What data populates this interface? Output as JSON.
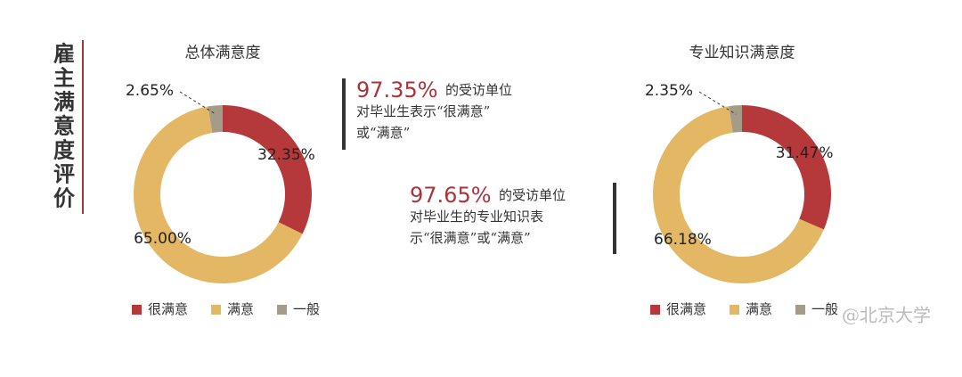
{
  "side_title": "雇主满意度评价",
  "callouts": [
    {
      "highlight": "97.35%",
      "lines": [
        "的受访单位",
        "对毕业生表示“很满意”",
        "或“满意”"
      ]
    },
    {
      "highlight": "97.65%",
      "lines": [
        "的受访单位",
        "对毕业生的专业知识表",
        "示“很满意”或“满意”"
      ]
    }
  ],
  "watermark": "@北京大学",
  "chart_data": [
    {
      "type": "donut",
      "title": "总体满意度",
      "categories": [
        "很满意",
        "满意",
        "一般"
      ],
      "values": [
        32.35,
        65.0,
        2.65
      ],
      "value_labels": [
        "32.35%",
        "65.00%",
        "2.65%"
      ],
      "colors": [
        "#b5393a",
        "#e3b764",
        "#a49b88"
      ]
    },
    {
      "type": "donut",
      "title": "专业知识满意度",
      "categories": [
        "很满意",
        "满意",
        "一般"
      ],
      "values": [
        31.47,
        66.18,
        2.35
      ],
      "value_labels": [
        "31.47%",
        "66.18%",
        "2.35%"
      ],
      "colors": [
        "#b5393a",
        "#e3b764",
        "#a49b88"
      ]
    }
  ]
}
